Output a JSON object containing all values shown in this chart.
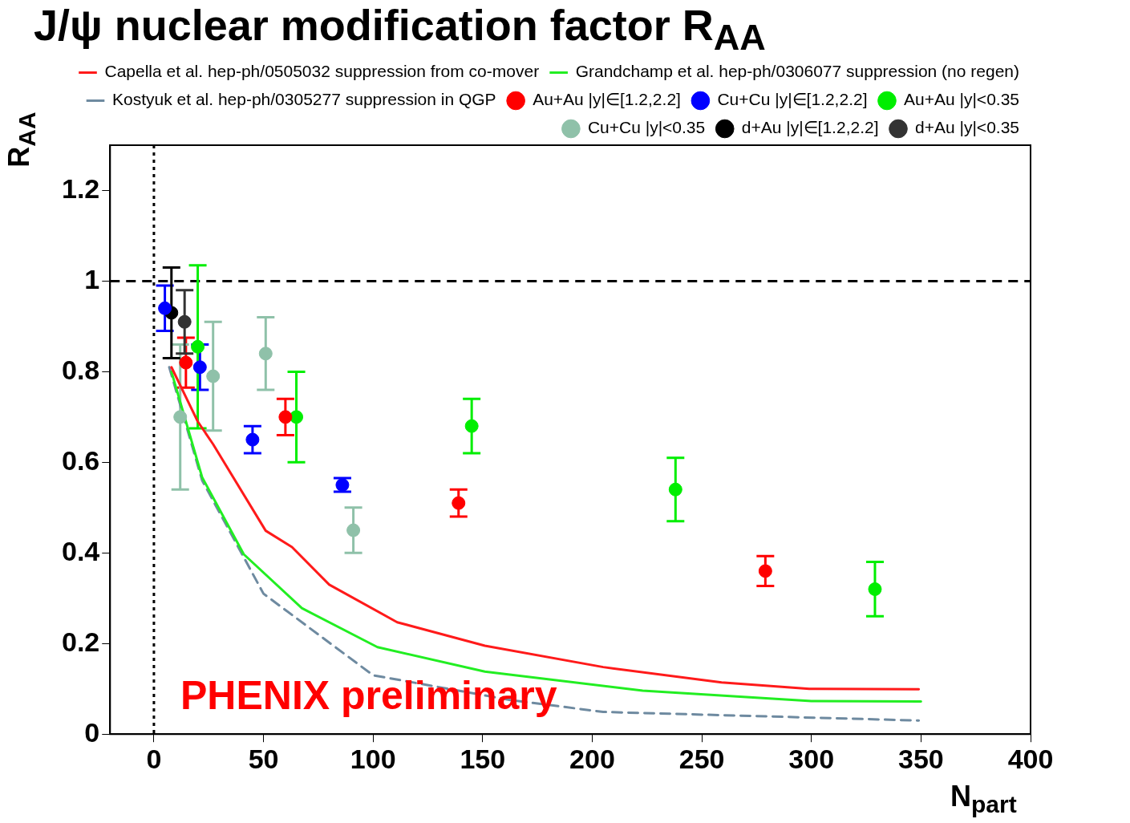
{
  "chart_data": {
    "type": "scatter",
    "title": "J/ψ nuclear modification factor R$_{AA}$",
    "xlabel": "N$_{part}$",
    "ylabel": "R$_{AA}$",
    "xlim": [
      -20,
      400
    ],
    "xticks": [
      0,
      50,
      100,
      150,
      200,
      250,
      300,
      350,
      400
    ],
    "ylim": [
      0,
      1.3
    ],
    "yticks": [
      0,
      0.2,
      0.4,
      0.6,
      0.8,
      1,
      1.2
    ],
    "grid": false,
    "legend": "top right",
    "ref_lines": [
      {
        "axis": "y",
        "value": 1,
        "line_style": "dashed",
        "color": "#000000"
      },
      {
        "axis": "x",
        "value": 0,
        "line_style": "dotted",
        "color": "#000000"
      }
    ],
    "annotations": [
      "PHENIX preliminary"
    ],
    "series": [
      {
        "name": "Capella et al. hep-ph/0505032 suppression from co-mover",
        "type": "line",
        "color": "#ff1a1a",
        "line_style": "solid",
        "x": [
          8,
          20,
          27,
          51,
          63,
          80,
          111,
          151,
          205,
          259,
          299,
          349
        ],
        "values": [
          0.81,
          0.69,
          0.64,
          0.449,
          0.413,
          0.33,
          0.247,
          0.195,
          0.148,
          0.114,
          0.1,
          0.099
        ]
      },
      {
        "name": "Grandchamp et al. hep-ph/0306077 suppression (no regen)",
        "type": "line",
        "color": "#22ee22",
        "line_style": "solid",
        "x": [
          8,
          22,
          41,
          67.5,
          102,
          151,
          223,
          300,
          350
        ],
        "values": [
          0.8,
          0.567,
          0.397,
          0.278,
          0.192,
          0.138,
          0.096,
          0.073,
          0.072
        ]
      },
      {
        "name": "Kostyuk et al. hep-ph/0305277 suppression in QGP",
        "type": "line",
        "color": "#6e8aa0",
        "line_style": "dashed",
        "x": [
          7,
          22,
          50,
          100,
          163,
          205,
          349
        ],
        "values": [
          0.81,
          0.56,
          0.31,
          0.13,
          0.075,
          0.049,
          0.03
        ]
      },
      {
        "name": "Au+Au |y|∈[1.2,2.2]",
        "color": "#ff0000",
        "marker": "circle",
        "x": [
          14.6,
          60,
          139,
          279
        ],
        "values": [
          0.82,
          0.7,
          0.51,
          0.36
        ],
        "errors": [
          0.055,
          0.04,
          0.03,
          0.033
        ]
      },
      {
        "name": "Cu+Cu |y|∈[1.2,2.2]",
        "color": "#0000ff",
        "marker": "circle",
        "x": [
          5,
          21,
          45,
          86
        ],
        "values": [
          0.94,
          0.81,
          0.65,
          0.55
        ],
        "errors": [
          0.05,
          0.05,
          0.03,
          0.015
        ]
      },
      {
        "name": "Au+Au |y|<0.35",
        "color": "#00ee00",
        "marker": "circle",
        "x": [
          20,
          65,
          145,
          238,
          329
        ],
        "values": [
          0.855,
          0.7,
          0.68,
          0.54,
          0.32
        ],
        "errors": [
          0.18,
          0.1,
          0.06,
          0.07,
          0.06
        ]
      },
      {
        "name": "Cu+Cu |y|<0.35",
        "color": "#8fc1a9",
        "marker": "circle",
        "x": [
          12,
          27,
          51,
          91
        ],
        "values": [
          0.7,
          0.79,
          0.84,
          0.45
        ],
        "errors": [
          0.16,
          0.12,
          0.08,
          0.05
        ]
      },
      {
        "name": "d+Au |y|∈[1.2,2.2]",
        "color": "#000000",
        "marker": "circle",
        "x": [
          8
        ],
        "values": [
          0.93
        ],
        "errors": [
          0.1
        ]
      },
      {
        "name": "d+Au |y|<0.35",
        "color": "#333333",
        "marker": "circle",
        "x": [
          14
        ],
        "values": [
          0.91
        ],
        "errors": [
          0.07
        ]
      }
    ]
  }
}
